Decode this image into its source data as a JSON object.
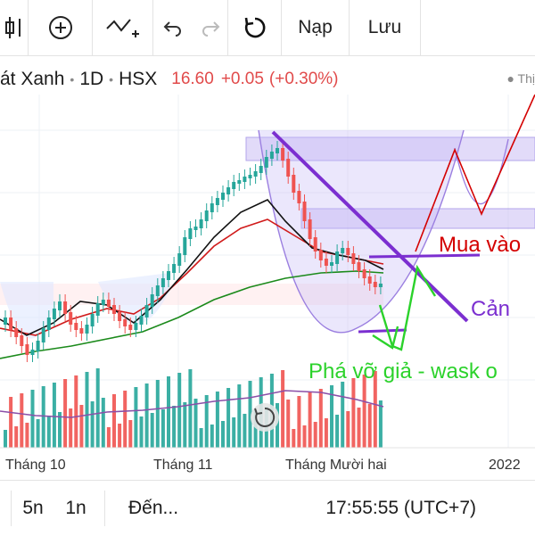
{
  "toolbar": {
    "items": [
      {
        "name": "chart-style-icon"
      },
      {
        "name": "add-indicator-icon"
      },
      {
        "name": "drawing-tool-icon"
      },
      {
        "name": "undo-icon"
      },
      {
        "name": "redo-icon"
      },
      {
        "name": "reload-icon"
      }
    ],
    "load_label": "Nạp",
    "save_label": "Lưu"
  },
  "header": {
    "symbol_name": "át Xanh",
    "interval": "1D",
    "exchange": "HSX",
    "price": "16.60",
    "change": "+0.05",
    "change_pct": "(+0.30%)",
    "market_label": "Thị"
  },
  "chart_data": {
    "type": "candlestick",
    "x_ticks": [
      "Tháng 10",
      "Tháng 11",
      "Tháng Mười hai",
      "2022"
    ],
    "annotations": [
      "Mua vào",
      "Cản",
      "Phá vỡ giả - wask o"
    ],
    "colors": {
      "up": "#26a69a",
      "down": "#ef5350",
      "annot_buy": "#d40000",
      "annot_resist": "#7b2fd0",
      "annot_break": "#2bd22b"
    }
  },
  "footer": {
    "range_5d": "5n",
    "range_1d": "1n",
    "goto": "Đến...",
    "clock": "17:55:55 (UTC+7)"
  }
}
